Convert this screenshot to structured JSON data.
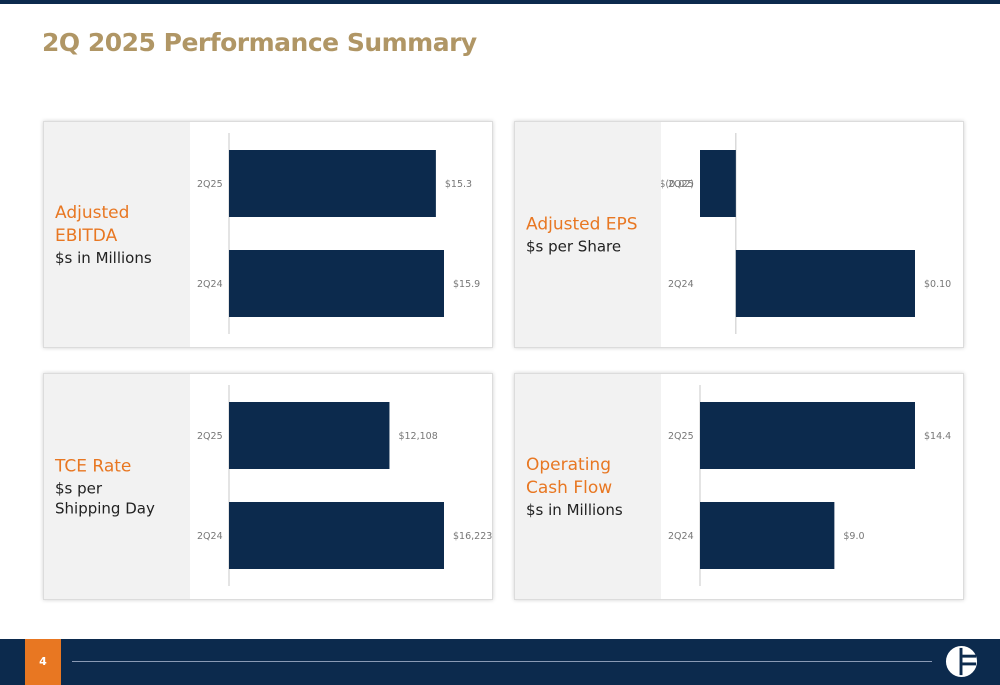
{
  "title": "2Q 2025 Performance Summary",
  "page_number": "4",
  "colors": {
    "title": "#b09665",
    "metric": "#e87722",
    "bar": "#0c2a4d",
    "accent": "#e87722",
    "navy": "#0c2a4d"
  },
  "footer": {
    "logo_icon": "company-logo-icon"
  },
  "panels": [
    {
      "metric": "Adjusted\nEBITDA",
      "unit": "$s in Millions"
    },
    {
      "metric": "Adjusted EPS",
      "unit": "$s per Share"
    },
    {
      "metric": "TCE Rate",
      "unit": "$s per\nShipping Day"
    },
    {
      "metric": "Operating\nCash Flow",
      "unit": "$s in Millions"
    }
  ],
  "chart_data": [
    {
      "type": "bar",
      "orientation": "horizontal",
      "categories": [
        "2Q25",
        "2Q24"
      ],
      "values": [
        15.3,
        15.9
      ],
      "value_labels": [
        "$15.3",
        "$15.9"
      ]
    },
    {
      "type": "bar",
      "orientation": "horizontal",
      "categories": [
        "2Q25",
        "2Q24"
      ],
      "values": [
        -0.02,
        0.1
      ],
      "value_labels": [
        "$(0.02)",
        "$0.10"
      ]
    },
    {
      "type": "bar",
      "orientation": "horizontal",
      "categories": [
        "2Q25",
        "2Q24"
      ],
      "values": [
        12108,
        16223
      ],
      "value_labels": [
        "$12,108",
        "$16,223"
      ]
    },
    {
      "type": "bar",
      "orientation": "horizontal",
      "categories": [
        "2Q25",
        "2Q24"
      ],
      "values": [
        14.4,
        9.0
      ],
      "value_labels": [
        "$14.4",
        "$9.0"
      ]
    }
  ]
}
